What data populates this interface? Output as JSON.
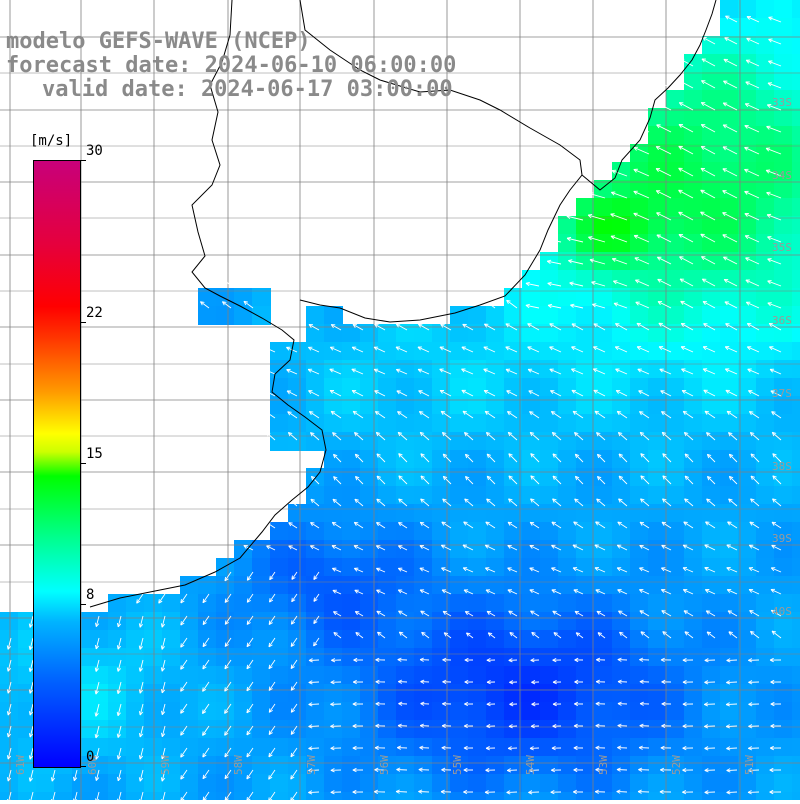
{
  "title": {
    "line1": "modelo GEFS-WAVE (NCEP)",
    "line2": "forecast date: 2024-06-10 06:00:00",
    "line3": "valid date: 2024-06-17 03:00:00"
  },
  "colorbar": {
    "unit": "[m/s]",
    "ticks": [
      "30",
      "22",
      "15",
      "8",
      "0"
    ],
    "tick_values": [
      30,
      22,
      15,
      8,
      0
    ],
    "min": 0,
    "max": 30,
    "colors": [
      "#0000ff",
      "#00b4ff",
      "#00ffff",
      "#00ff00",
      "#ffff00",
      "#ff9900",
      "#ff0000",
      "#c8007a"
    ]
  },
  "map": {
    "variable": "wind speed and direction",
    "region": "southern Brazil / Uruguay / Argentina coast, South Atlantic",
    "lon_labels": [
      "61W",
      "60W",
      "59W",
      "58W",
      "57W",
      "56W",
      "55W",
      "54W",
      "53W",
      "52W",
      "51W"
    ],
    "lat_labels": [
      "33S",
      "34S",
      "35S",
      "36S",
      "37S",
      "38S",
      "39S",
      "40S"
    ],
    "land_color": "#ffffff",
    "grid_color": "#808080",
    "coast_color": "#000000"
  }
}
